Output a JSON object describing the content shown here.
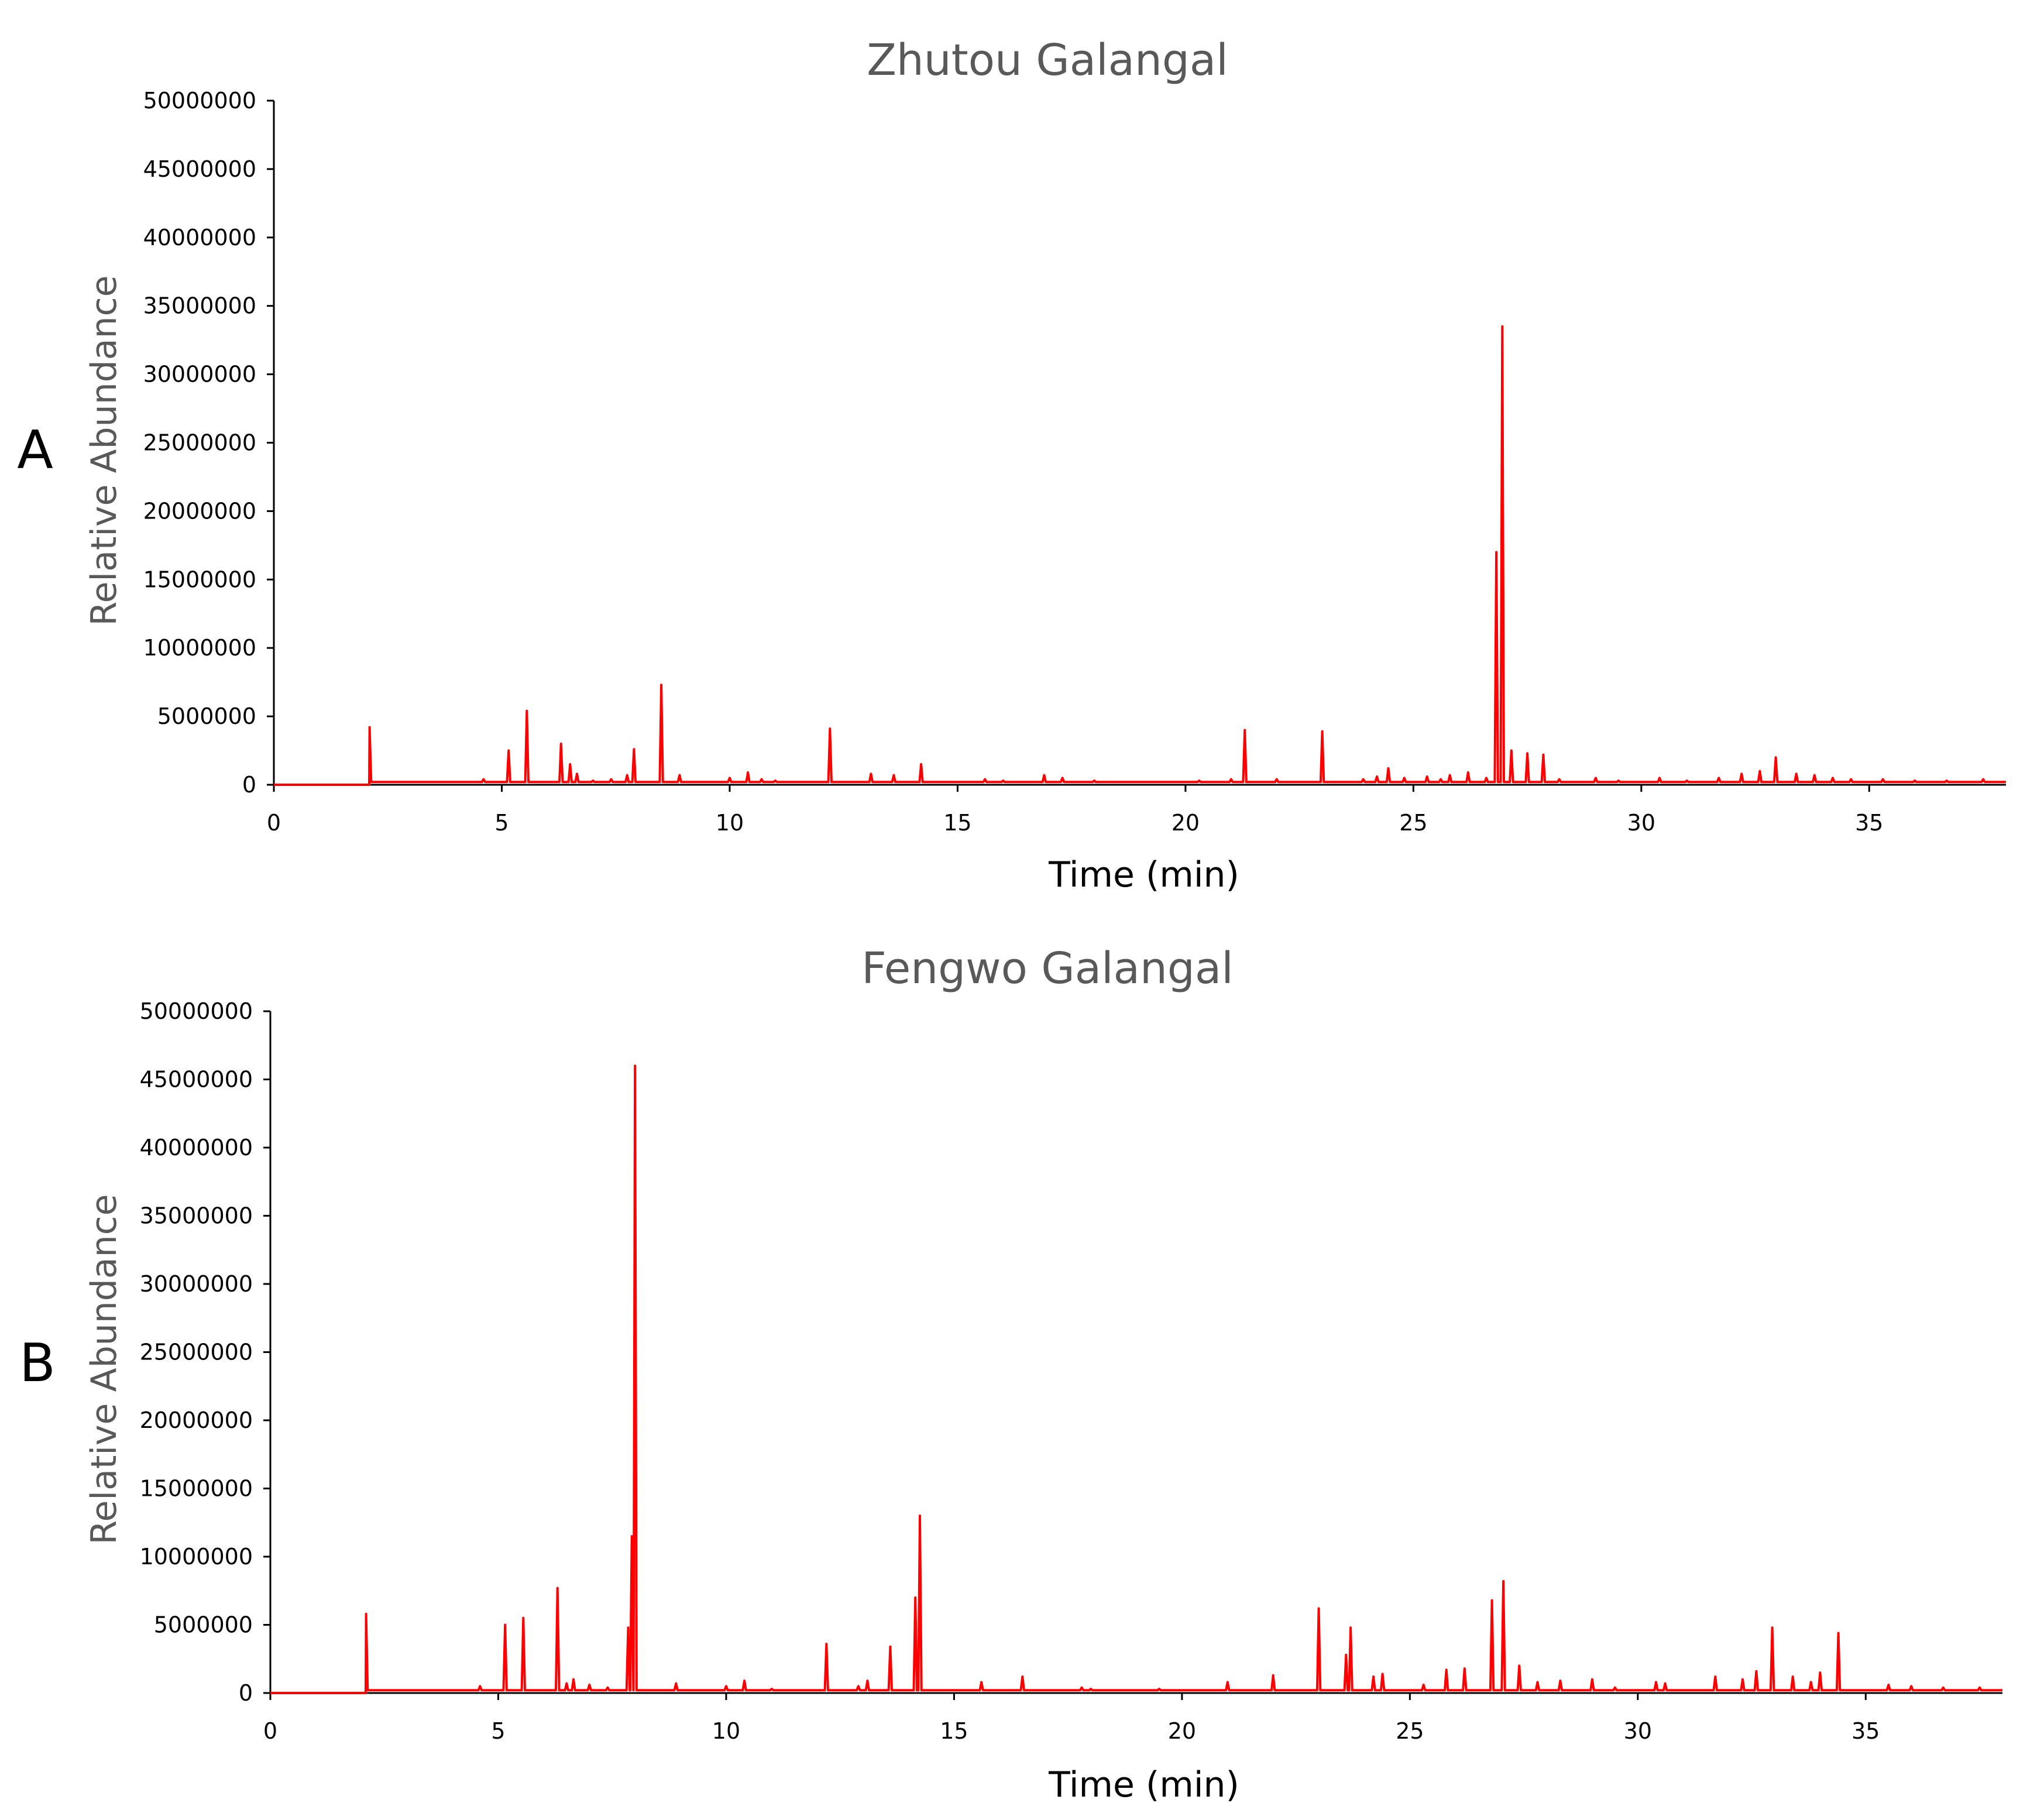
{
  "chart_data": [
    {
      "panel": "A",
      "type": "line",
      "title": "Zhutou Galangal",
      "xlabel": "Time (min)",
      "ylabel": "Relative Abundance",
      "xlim": [
        0,
        38
      ],
      "ylim": [
        0,
        50000000
      ],
      "x_ticks": [
        "0",
        "5",
        "10",
        "15",
        "20",
        "25",
        "30",
        "35"
      ],
      "y_ticks": [
        "0",
        "5000000",
        "10000000",
        "15000000",
        "20000000",
        "25000000",
        "30000000",
        "35000000",
        "40000000",
        "45000000",
        "50000000"
      ],
      "grid": false,
      "line_color": "#ff0000",
      "baseline": 200000,
      "start_time": 2.1,
      "peaks": [
        [
          2.1,
          4200000
        ],
        [
          4.6,
          400000
        ],
        [
          5.15,
          2500000
        ],
        [
          5.55,
          5400000
        ],
        [
          6.3,
          3000000
        ],
        [
          6.5,
          1500000
        ],
        [
          6.65,
          800000
        ],
        [
          7.0,
          300000
        ],
        [
          7.4,
          400000
        ],
        [
          7.75,
          700000
        ],
        [
          7.9,
          2600000
        ],
        [
          8.5,
          7300000
        ],
        [
          8.9,
          700000
        ],
        [
          10.0,
          500000
        ],
        [
          10.4,
          900000
        ],
        [
          10.7,
          400000
        ],
        [
          11.0,
          300000
        ],
        [
          12.2,
          4100000
        ],
        [
          13.1,
          800000
        ],
        [
          13.6,
          700000
        ],
        [
          14.2,
          1500000
        ],
        [
          15.6,
          400000
        ],
        [
          16.0,
          300000
        ],
        [
          16.9,
          700000
        ],
        [
          17.3,
          500000
        ],
        [
          18.0,
          300000
        ],
        [
          19.5,
          200000
        ],
        [
          20.3,
          300000
        ],
        [
          21.0,
          400000
        ],
        [
          21.3,
          4000000
        ],
        [
          22.0,
          400000
        ],
        [
          23.0,
          3900000
        ],
        [
          23.9,
          400000
        ],
        [
          24.2,
          600000
        ],
        [
          24.45,
          1200000
        ],
        [
          24.8,
          500000
        ],
        [
          25.3,
          600000
        ],
        [
          25.6,
          400000
        ],
        [
          25.8,
          700000
        ],
        [
          26.2,
          900000
        ],
        [
          26.6,
          500000
        ],
        [
          26.82,
          17000000
        ],
        [
          26.95,
          33500000
        ],
        [
          27.15,
          2500000
        ],
        [
          27.5,
          2300000
        ],
        [
          27.85,
          2200000
        ],
        [
          28.2,
          400000
        ],
        [
          29.0,
          500000
        ],
        [
          29.5,
          300000
        ],
        [
          30.4,
          500000
        ],
        [
          31.0,
          300000
        ],
        [
          31.7,
          500000
        ],
        [
          32.2,
          800000
        ],
        [
          32.6,
          1000000
        ],
        [
          32.95,
          2000000
        ],
        [
          33.4,
          800000
        ],
        [
          33.8,
          700000
        ],
        [
          34.2,
          500000
        ],
        [
          34.6,
          400000
        ],
        [
          35.3,
          400000
        ],
        [
          36.0,
          300000
        ],
        [
          36.7,
          300000
        ],
        [
          37.5,
          400000
        ]
      ]
    },
    {
      "panel": "B",
      "type": "line",
      "title": "Fengwo Galangal",
      "xlabel": "Time (min)",
      "ylabel": "Relative Abundance",
      "xlim": [
        0,
        38
      ],
      "ylim": [
        0,
        50000000
      ],
      "x_ticks": [
        "0",
        "5",
        "10",
        "15",
        "20",
        "25",
        "30",
        "35"
      ],
      "y_ticks": [
        "0",
        "5000000",
        "10000000",
        "15000000",
        "20000000",
        "25000000",
        "30000000",
        "35000000",
        "40000000",
        "45000000",
        "50000000"
      ],
      "grid": false,
      "line_color": "#ff0000",
      "baseline": 200000,
      "start_time": 2.1,
      "peaks": [
        [
          2.1,
          5800000
        ],
        [
          4.6,
          500000
        ],
        [
          5.15,
          5000000
        ],
        [
          5.55,
          5500000
        ],
        [
          6.3,
          7700000
        ],
        [
          6.5,
          700000
        ],
        [
          6.65,
          1000000
        ],
        [
          7.0,
          600000
        ],
        [
          7.4,
          400000
        ],
        [
          7.85,
          4800000
        ],
        [
          7.93,
          11500000
        ],
        [
          8.0,
          46000000
        ],
        [
          8.9,
          700000
        ],
        [
          10.0,
          500000
        ],
        [
          10.4,
          900000
        ],
        [
          11.0,
          300000
        ],
        [
          12.2,
          3600000
        ],
        [
          12.9,
          500000
        ],
        [
          13.1,
          900000
        ],
        [
          13.6,
          3400000
        ],
        [
          14.15,
          7000000
        ],
        [
          14.25,
          13000000
        ],
        [
          15.6,
          800000
        ],
        [
          16.5,
          1200000
        ],
        [
          17.8,
          400000
        ],
        [
          18.0,
          300000
        ],
        [
          19.5,
          300000
        ],
        [
          21.0,
          800000
        ],
        [
          22.0,
          1300000
        ],
        [
          23.0,
          6200000
        ],
        [
          23.6,
          2800000
        ],
        [
          23.7,
          4800000
        ],
        [
          24.2,
          1200000
        ],
        [
          24.4,
          1400000
        ],
        [
          25.3,
          600000
        ],
        [
          25.8,
          1700000
        ],
        [
          26.2,
          1800000
        ],
        [
          26.8,
          6800000
        ],
        [
          27.05,
          8200000
        ],
        [
          27.4,
          2000000
        ],
        [
          27.8,
          800000
        ],
        [
          28.3,
          900000
        ],
        [
          29.0,
          1000000
        ],
        [
          29.5,
          400000
        ],
        [
          30.4,
          800000
        ],
        [
          30.6,
          700000
        ],
        [
          31.7,
          1200000
        ],
        [
          32.3,
          1000000
        ],
        [
          32.6,
          1600000
        ],
        [
          32.95,
          4800000
        ],
        [
          33.4,
          1200000
        ],
        [
          33.8,
          800000
        ],
        [
          34.0,
          1500000
        ],
        [
          34.4,
          4400000
        ],
        [
          35.5,
          600000
        ],
        [
          36.0,
          500000
        ],
        [
          36.7,
          400000
        ],
        [
          37.5,
          400000
        ]
      ]
    }
  ]
}
